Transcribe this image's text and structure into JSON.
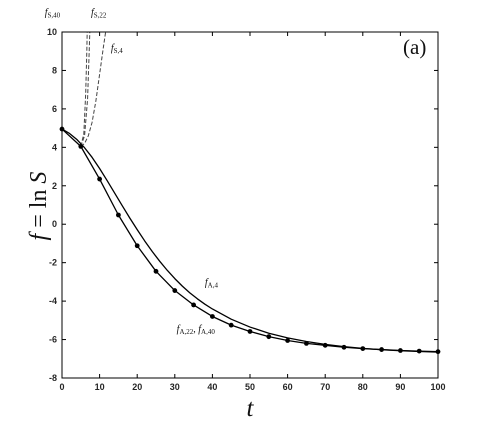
{
  "chart_data": {
    "type": "line",
    "panel_label": "(a)",
    "xlabel": "t",
    "ylabel": "f = ln S",
    "xlim": [
      0,
      100
    ],
    "ylim": [
      -8,
      10
    ],
    "xticks": [
      0,
      10,
      20,
      30,
      40,
      50,
      60,
      70,
      80,
      90,
      100
    ],
    "yticks": [
      -8,
      -6,
      -4,
      -2,
      0,
      2,
      4,
      6,
      8,
      10
    ],
    "grid": false,
    "series": [
      {
        "name": "f_{A,4}",
        "style": "solid",
        "color": "#000000",
        "x": [
          0,
          2,
          4,
          6,
          8,
          10,
          12,
          14,
          16,
          18,
          20,
          22,
          24,
          26,
          28,
          30,
          32,
          34,
          36,
          38,
          40,
          45,
          50,
          55,
          60,
          65,
          70,
          75,
          80,
          85,
          90,
          95,
          100
        ],
        "y": [
          4.95,
          4.72,
          4.4,
          3.98,
          3.48,
          2.9,
          2.27,
          1.62,
          0.97,
          0.33,
          -0.28,
          -0.87,
          -1.42,
          -1.93,
          -2.4,
          -2.83,
          -3.22,
          -3.57,
          -3.88,
          -4.16,
          -4.41,
          -4.94,
          -5.35,
          -5.67,
          -5.91,
          -6.1,
          -6.25,
          -6.37,
          -6.46,
          -6.53,
          -6.58,
          -6.62,
          -6.65
        ]
      },
      {
        "name": "f_{A,22}, f_{A,40}",
        "style": "solid-markers",
        "color": "#000000",
        "x": [
          0,
          5,
          10,
          15,
          20,
          25,
          30,
          35,
          40,
          45,
          50,
          55,
          60,
          65,
          70,
          75,
          80,
          85,
          90,
          95,
          100
        ],
        "y": [
          4.95,
          4.05,
          2.35,
          0.48,
          -1.12,
          -2.45,
          -3.45,
          -4.2,
          -4.8,
          -5.25,
          -5.58,
          -5.85,
          -6.05,
          -6.2,
          -6.3,
          -6.4,
          -6.47,
          -6.52,
          -6.57,
          -6.6,
          -6.63
        ]
      },
      {
        "name": "f_{S,4}",
        "style": "dashed",
        "color": "#444444",
        "x": [
          5,
          6,
          7,
          8,
          9,
          10,
          11,
          11.6
        ],
        "y": [
          4.05,
          4.2,
          4.6,
          5.3,
          6.4,
          7.8,
          9.2,
          10
        ]
      },
      {
        "name": "f_{S,22}",
        "style": "dashed",
        "color": "#444444",
        "x": [
          5,
          6,
          6.8,
          7.2,
          7.4
        ],
        "y": [
          4.05,
          4.6,
          6.5,
          8.8,
          10
        ]
      },
      {
        "name": "f_{S,40}",
        "style": "dashed",
        "color": "#444444",
        "x": [
          5,
          5.8,
          6.3,
          6.6,
          6.7
        ],
        "y": [
          4.05,
          4.7,
          6.8,
          9.0,
          10
        ]
      }
    ],
    "annotations": [
      {
        "base": "f",
        "sub": "S,40",
        "x": -4.6,
        "y": 10.85
      },
      {
        "base": "f",
        "sub": "S,22",
        "x": 7.7,
        "y": 10.85
      },
      {
        "base": "f",
        "sub": "S,4",
        "x": 13.0,
        "y": 9.0
      },
      {
        "base": "f",
        "sub": "A,4",
        "x": 38.0,
        "y": -3.2
      },
      {
        "base": "f",
        "sub": "A,22",
        "sep": ", ",
        "base2": "f",
        "sub2": "A,40",
        "x": 30.5,
        "y": -5.6
      }
    ]
  }
}
